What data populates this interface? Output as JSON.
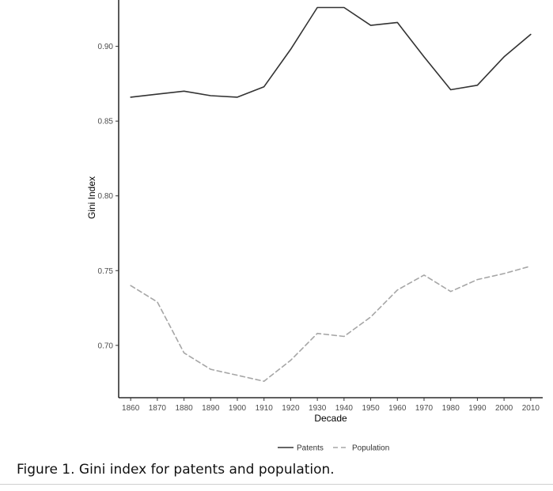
{
  "caption": "Figure 1.  Gini index for patents and population.",
  "chart_data": {
    "type": "line",
    "title": "",
    "xlabel": "Decade",
    "ylabel": "Gini Index",
    "x": [
      1860,
      1870,
      1880,
      1890,
      1900,
      1910,
      1920,
      1930,
      1940,
      1950,
      1960,
      1970,
      1980,
      1990,
      2000,
      2010
    ],
    "x_tick_labels": [
      "1860",
      "1870",
      "1880",
      "1890",
      "1900",
      "1910",
      "1920",
      "1930",
      "1940",
      "1950",
      "1960",
      "1970",
      "1980",
      "1990",
      "2000",
      "2010"
    ],
    "y_ticks": [
      0.7,
      0.75,
      0.8,
      0.85,
      0.9
    ],
    "y_tick_labels": [
      "0.70",
      "0.75",
      "0.80",
      "0.85",
      "0.90"
    ],
    "xlim": [
      1855.5,
      2014.5
    ],
    "ylim": [
      0.665,
      0.931
    ],
    "grid": false,
    "legend_position": "bottom",
    "series": [
      {
        "name": "Patents",
        "style": "solid",
        "color": "#333333",
        "values": [
          0.866,
          0.868,
          0.87,
          0.867,
          0.866,
          0.873,
          0.898,
          0.926,
          0.926,
          0.914,
          0.916,
          0.893,
          0.871,
          0.874,
          0.893,
          0.908
        ]
      },
      {
        "name": "Population",
        "style": "dashed",
        "color": "#a6a6a6",
        "values": [
          0.74,
          0.729,
          0.695,
          0.684,
          0.68,
          0.676,
          0.69,
          0.708,
          0.706,
          0.719,
          0.737,
          0.747,
          0.736,
          0.744,
          0.748,
          0.753
        ]
      }
    ]
  }
}
